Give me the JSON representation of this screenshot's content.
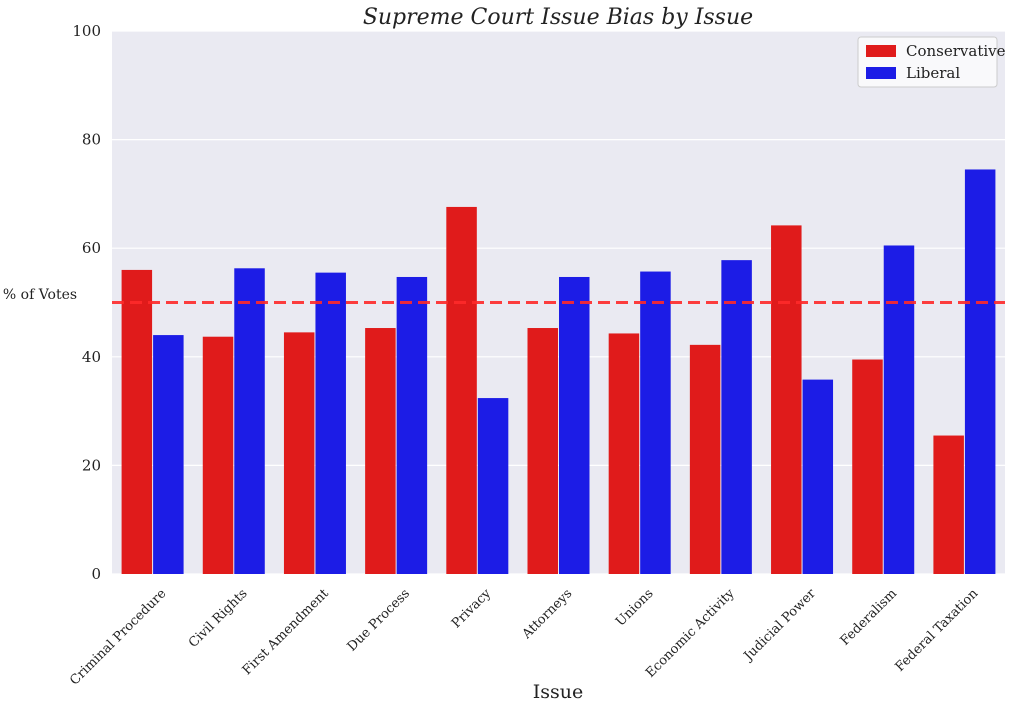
{
  "chart_data": {
    "type": "bar",
    "title": "Supreme Court Issue Bias by Issue",
    "xlabel": "Issue",
    "ylabel": "% of Votes",
    "ylim": [
      0,
      100
    ],
    "yticks": [
      0,
      20,
      40,
      60,
      80,
      100
    ],
    "grid": true,
    "legend_position": "top-right",
    "reference_line": {
      "y": 50,
      "style": "dashed",
      "color": "#ff2a2a"
    },
    "categories": [
      "Criminal Procedure",
      "Civil Rights",
      "First Amendment",
      "Due Process",
      "Privacy",
      "Attorneys",
      "Unions",
      "Economic Activity",
      "Judicial Power",
      "Federalism",
      "Federal Taxation"
    ],
    "series": [
      {
        "name": "Conservative",
        "color": "#e01b1b",
        "values": [
          56.0,
          43.7,
          44.5,
          45.3,
          67.6,
          45.3,
          44.3,
          42.2,
          64.2,
          39.5,
          25.5
        ]
      },
      {
        "name": "Liberal",
        "color": "#1c1ce6",
        "values": [
          44.0,
          56.3,
          55.5,
          54.7,
          32.4,
          54.7,
          55.7,
          57.8,
          35.8,
          60.5,
          74.5
        ]
      }
    ]
  }
}
